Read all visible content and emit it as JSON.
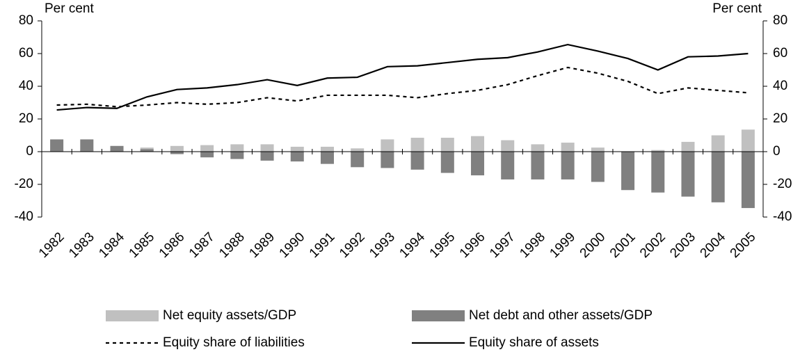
{
  "chart_data": {
    "type": "bar_line",
    "y_label": "Per cent",
    "y2_label": "Per cent",
    "categories": [
      "1982",
      "1983",
      "1984",
      "1985",
      "1986",
      "1987",
      "1988",
      "1989",
      "1990",
      "1991",
      "1992",
      "1993",
      "1994",
      "1995",
      "1996",
      "1997",
      "1998",
      "1999",
      "2000",
      "2001",
      "2002",
      "2003",
      "2004",
      "2005"
    ],
    "series": [
      {
        "name": "Net equity assets/GDP",
        "kind": "bar",
        "color": "#c0c0c0",
        "values": [
          1,
          1,
          0.5,
          2.5,
          3.5,
          4,
          4.5,
          4.5,
          3,
          3,
          2,
          7.5,
          8.5,
          8.5,
          9.5,
          7,
          4.5,
          5.5,
          2.5,
          -1,
          1,
          6,
          10,
          13.5
        ]
      },
      {
        "name": "Net debt and other assets/GDP",
        "kind": "bar",
        "color": "#808080",
        "values": [
          7.5,
          7.5,
          3.5,
          1.5,
          -1.5,
          -3.5,
          -4.5,
          -5.5,
          -6,
          -7.5,
          -9.5,
          -10,
          -11,
          -13,
          -14.5,
          -17,
          -17,
          -17,
          -18.5,
          -23.5,
          -25,
          -27.5,
          -31,
          -34.5
        ]
      },
      {
        "name": "Equity share of liabilities",
        "kind": "line",
        "dash": true,
        "color": "#000000",
        "values": [
          28.5,
          29,
          27.5,
          28.5,
          30,
          29,
          30,
          33,
          31,
          34.5,
          34.5,
          34.5,
          33,
          35.5,
          37.5,
          41,
          46.5,
          51.5,
          48,
          43,
          35.5,
          39,
          37.5,
          36
        ]
      },
      {
        "name": "Equity share of assets",
        "kind": "line",
        "dash": false,
        "color": "#000000",
        "values": [
          25.5,
          27,
          26.5,
          33.5,
          38,
          39,
          41,
          44,
          40.5,
          45,
          45.5,
          52,
          52.5,
          54.5,
          56.5,
          57.5,
          61,
          65.5,
          61.5,
          57,
          50,
          58,
          58.5,
          60
        ]
      }
    ],
    "ylim": [
      -40,
      80
    ],
    "yticks": [
      -40,
      -20,
      0,
      20,
      40,
      60,
      80
    ],
    "y2lim": [
      -40,
      80
    ],
    "y2ticks": [
      -40,
      -20,
      0,
      20,
      40,
      60,
      80
    ]
  }
}
